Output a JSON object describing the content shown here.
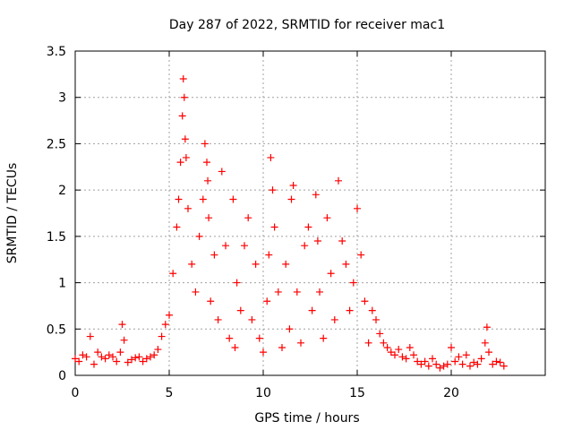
{
  "chart_data": {
    "type": "scatter",
    "title": "Day 287 of 2022, SRMTID for receiver mac1",
    "xlabel": "GPS time / hours",
    "ylabel": "SRMTID / TECUs",
    "xlim": [
      0,
      25
    ],
    "ylim": [
      0,
      3.5
    ],
    "x_ticks": [
      0,
      5,
      10,
      15,
      20
    ],
    "x_tick_labels": [
      "0",
      "5",
      "10",
      "15",
      "20"
    ],
    "y_ticks": [
      0,
      0.5,
      1,
      1.5,
      2,
      2.5,
      3,
      3.5
    ],
    "y_tick_labels": [
      "0",
      "0.5",
      "1",
      "1.5",
      "2",
      "2.5",
      "3",
      "3.5"
    ],
    "grid": true,
    "marker": "+",
    "series": [
      {
        "name": "SRMTID mac1",
        "color": "#ff0000",
        "x": [
          0.0,
          0.2,
          0.4,
          0.6,
          0.8,
          1.0,
          1.2,
          1.4,
          1.6,
          1.8,
          2.0,
          2.2,
          2.4,
          2.5,
          2.6,
          2.8,
          3.0,
          3.2,
          3.4,
          3.6,
          3.8,
          4.0,
          4.2,
          4.4,
          4.6,
          4.8,
          5.0,
          5.2,
          5.4,
          5.5,
          5.6,
          5.7,
          5.75,
          5.8,
          5.85,
          5.9,
          6.0,
          6.2,
          6.4,
          6.6,
          6.8,
          6.9,
          7.0,
          7.05,
          7.1,
          7.2,
          7.4,
          7.6,
          7.8,
          8.0,
          8.2,
          8.4,
          8.5,
          8.6,
          8.8,
          9.0,
          9.2,
          9.4,
          9.6,
          9.8,
          10.0,
          10.2,
          10.3,
          10.4,
          10.5,
          10.6,
          10.8,
          11.0,
          11.2,
          11.4,
          11.5,
          11.6,
          11.8,
          12.0,
          12.2,
          12.4,
          12.6,
          12.8,
          12.9,
          13.0,
          13.2,
          13.4,
          13.6,
          13.8,
          14.0,
          14.2,
          14.4,
          14.6,
          14.8,
          15.0,
          15.2,
          15.4,
          15.6,
          15.8,
          16.0,
          16.2,
          16.4,
          16.6,
          16.8,
          17.0,
          17.2,
          17.4,
          17.6,
          17.8,
          18.0,
          18.2,
          18.4,
          18.6,
          18.8,
          19.0,
          19.2,
          19.4,
          19.6,
          19.8,
          20.0,
          20.2,
          20.4,
          20.6,
          20.8,
          21.0,
          21.2,
          21.4,
          21.6,
          21.8,
          21.9,
          22.0,
          22.2,
          22.4,
          22.6,
          22.8
        ],
        "y": [
          0.18,
          0.15,
          0.22,
          0.2,
          0.42,
          0.12,
          0.25,
          0.2,
          0.18,
          0.22,
          0.2,
          0.15,
          0.25,
          0.55,
          0.38,
          0.14,
          0.17,
          0.19,
          0.2,
          0.15,
          0.18,
          0.2,
          0.22,
          0.28,
          0.42,
          0.55,
          0.65,
          1.1,
          1.6,
          1.9,
          2.3,
          2.8,
          3.2,
          3.0,
          2.55,
          2.35,
          1.8,
          1.2,
          0.9,
          1.5,
          1.9,
          2.5,
          2.3,
          2.1,
          1.7,
          0.8,
          1.3,
          0.6,
          2.2,
          1.4,
          0.4,
          1.9,
          0.3,
          1.0,
          0.7,
          1.4,
          1.7,
          0.6,
          1.2,
          0.4,
          0.25,
          0.8,
          1.3,
          2.35,
          2.0,
          1.6,
          0.9,
          0.3,
          1.2,
          0.5,
          1.9,
          2.05,
          0.9,
          0.35,
          1.4,
          1.6,
          0.7,
          1.95,
          1.45,
          0.9,
          0.4,
          1.7,
          1.1,
          0.6,
          2.1,
          1.45,
          1.2,
          0.7,
          1.0,
          1.8,
          1.3,
          0.8,
          0.35,
          0.7,
          0.6,
          0.45,
          0.35,
          0.3,
          0.25,
          0.22,
          0.28,
          0.2,
          0.18,
          0.3,
          0.22,
          0.15,
          0.12,
          0.15,
          0.1,
          0.18,
          0.12,
          0.08,
          0.1,
          0.12,
          0.3,
          0.15,
          0.2,
          0.12,
          0.22,
          0.1,
          0.14,
          0.12,
          0.18,
          0.35,
          0.52,
          0.25,
          0.12,
          0.15,
          0.14,
          0.1
        ]
      }
    ]
  }
}
